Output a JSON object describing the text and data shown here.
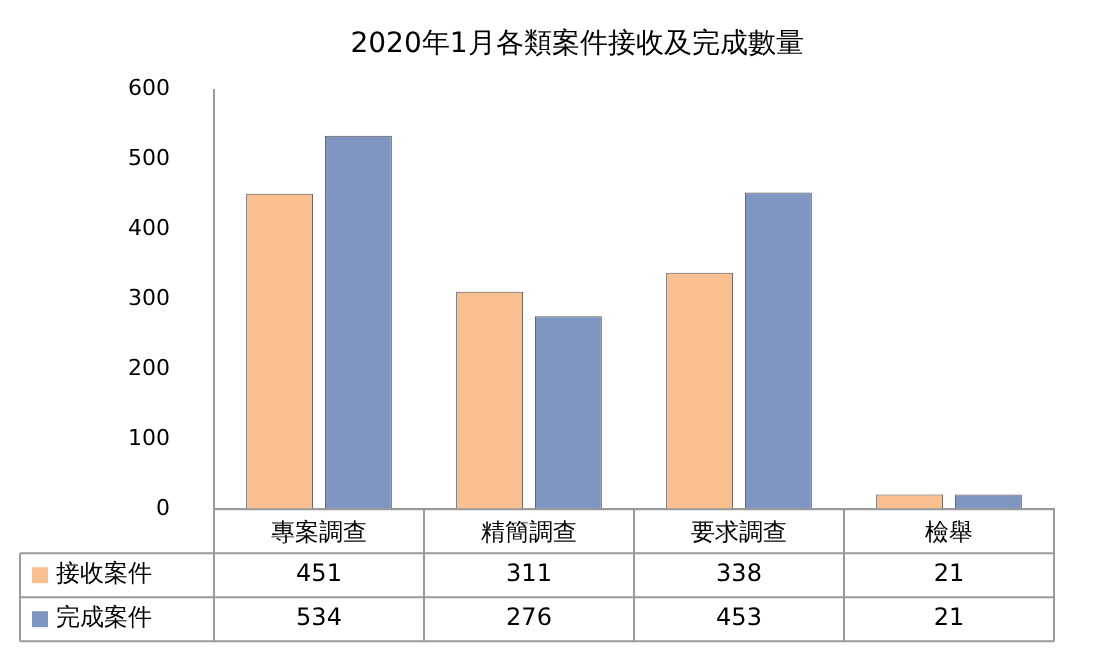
{
  "chart_data": {
    "type": "bar",
    "title": "2020年1月各類案件接收及完成數量",
    "categories": [
      "專案調查",
      "精簡調查",
      "要求調查",
      "檢舉"
    ],
    "series": [
      {
        "name": "接收案件",
        "color": "#f9bf8f",
        "values": [
          451,
          311,
          338,
          21
        ]
      },
      {
        "name": "完成案件",
        "color": "#8096c2",
        "values": [
          534,
          276,
          453,
          21
        ]
      }
    ],
    "ylim": [
      0,
      600
    ],
    "yticks": [
      0,
      100,
      200,
      300,
      400,
      500,
      600
    ],
    "grid": false,
    "legend": "bottom",
    "data_labels": true
  }
}
